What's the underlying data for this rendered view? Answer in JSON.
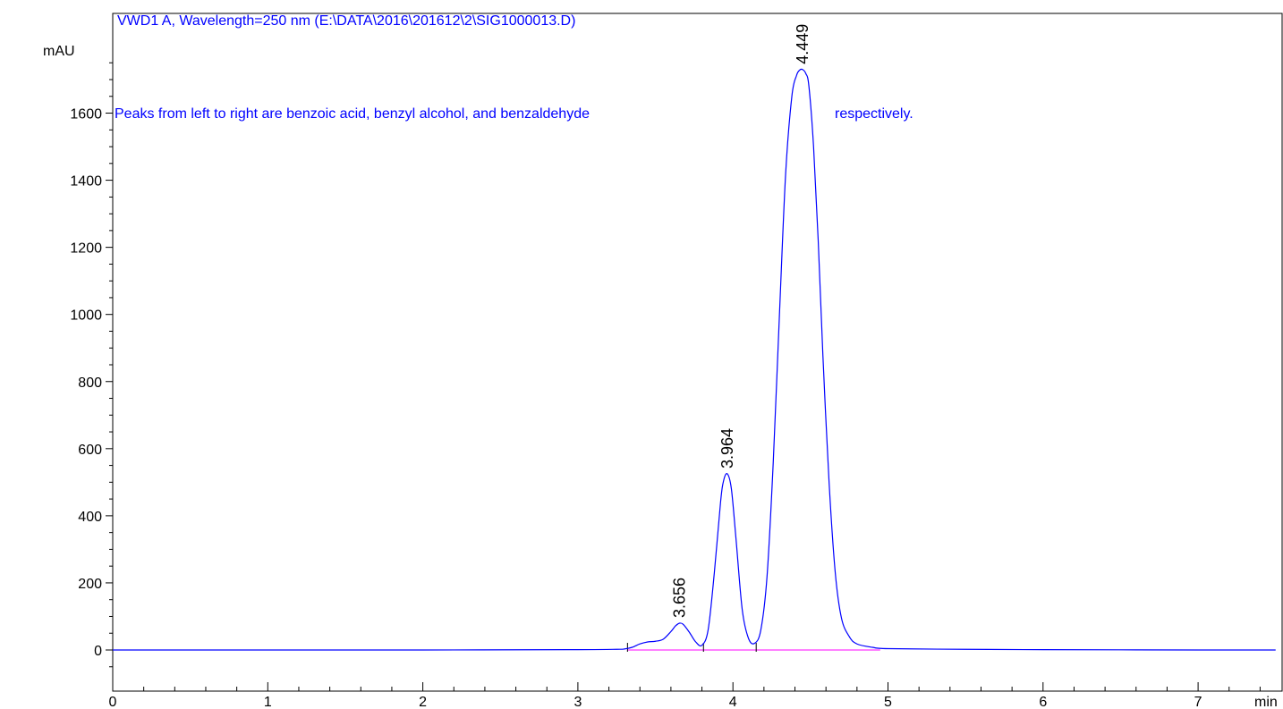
{
  "header": {
    "signal_title": "VWD1 A, Wavelength=250 nm (E:\\DATA\\2016\\201612\\2\\SIG1000013.D)"
  },
  "annotation": {
    "text_main": "Peaks from left to right are benzoic acid, benzyl alcohol, and benzaldehyde",
    "text_tail": "respectively."
  },
  "chart_data": {
    "type": "line",
    "xlabel": "min",
    "ylabel": "mAU",
    "xlim": [
      0,
      7.5
    ],
    "ylim": [
      -90,
      1800
    ],
    "x_ticks": [
      0,
      1,
      2,
      3,
      4,
      5,
      6,
      7
    ],
    "y_ticks": [
      0,
      200,
      400,
      600,
      800,
      1000,
      1200,
      1400,
      1600
    ],
    "grid": false,
    "colors": {
      "trace": "#0000ff",
      "baseline": "#ff00ff",
      "axis": "#000000",
      "text": "#0000ff"
    },
    "series": [
      {
        "x": [
          0,
          1,
          2,
          3,
          3.25,
          3.3,
          3.35,
          3.4,
          3.45,
          3.5,
          3.55,
          3.6,
          3.63,
          3.656,
          3.68,
          3.72,
          3.76,
          3.8,
          3.84,
          3.88,
          3.92,
          3.94,
          3.964,
          3.99,
          4.02,
          4.06,
          4.1,
          4.14,
          4.18,
          4.22,
          4.26,
          4.3,
          4.34,
          4.38,
          4.41,
          4.43,
          4.449,
          4.47,
          4.49,
          4.52,
          4.55,
          4.58,
          4.62,
          4.66,
          4.7,
          4.75,
          4.8,
          4.9,
          5,
          5.5,
          6,
          7,
          7.5
        ],
        "y": [
          0,
          0,
          0,
          1,
          2,
          3,
          8,
          18,
          24,
          26,
          32,
          55,
          72,
          80,
          76,
          52,
          24,
          14,
          60,
          230,
          440,
          505,
          525,
          480,
          330,
          120,
          35,
          20,
          60,
          220,
          560,
          1000,
          1420,
          1650,
          1712,
          1728,
          1730,
          1718,
          1680,
          1500,
          1220,
          880,
          500,
          230,
          95,
          40,
          18,
          8,
          4,
          2,
          1,
          0,
          0
        ]
      }
    ],
    "peak_labels": [
      {
        "x": 3.656,
        "y": 80,
        "label": "3.656"
      },
      {
        "x": 3.964,
        "y": 525,
        "label": "3.964"
      },
      {
        "x": 4.449,
        "y": 1730,
        "label": "4.449"
      }
    ],
    "integration_baseline": {
      "x": [
        3.32,
        4.95
      ],
      "y": [
        0,
        0
      ]
    },
    "integration_markers": [
      3.32,
      3.81,
      4.15
    ]
  }
}
